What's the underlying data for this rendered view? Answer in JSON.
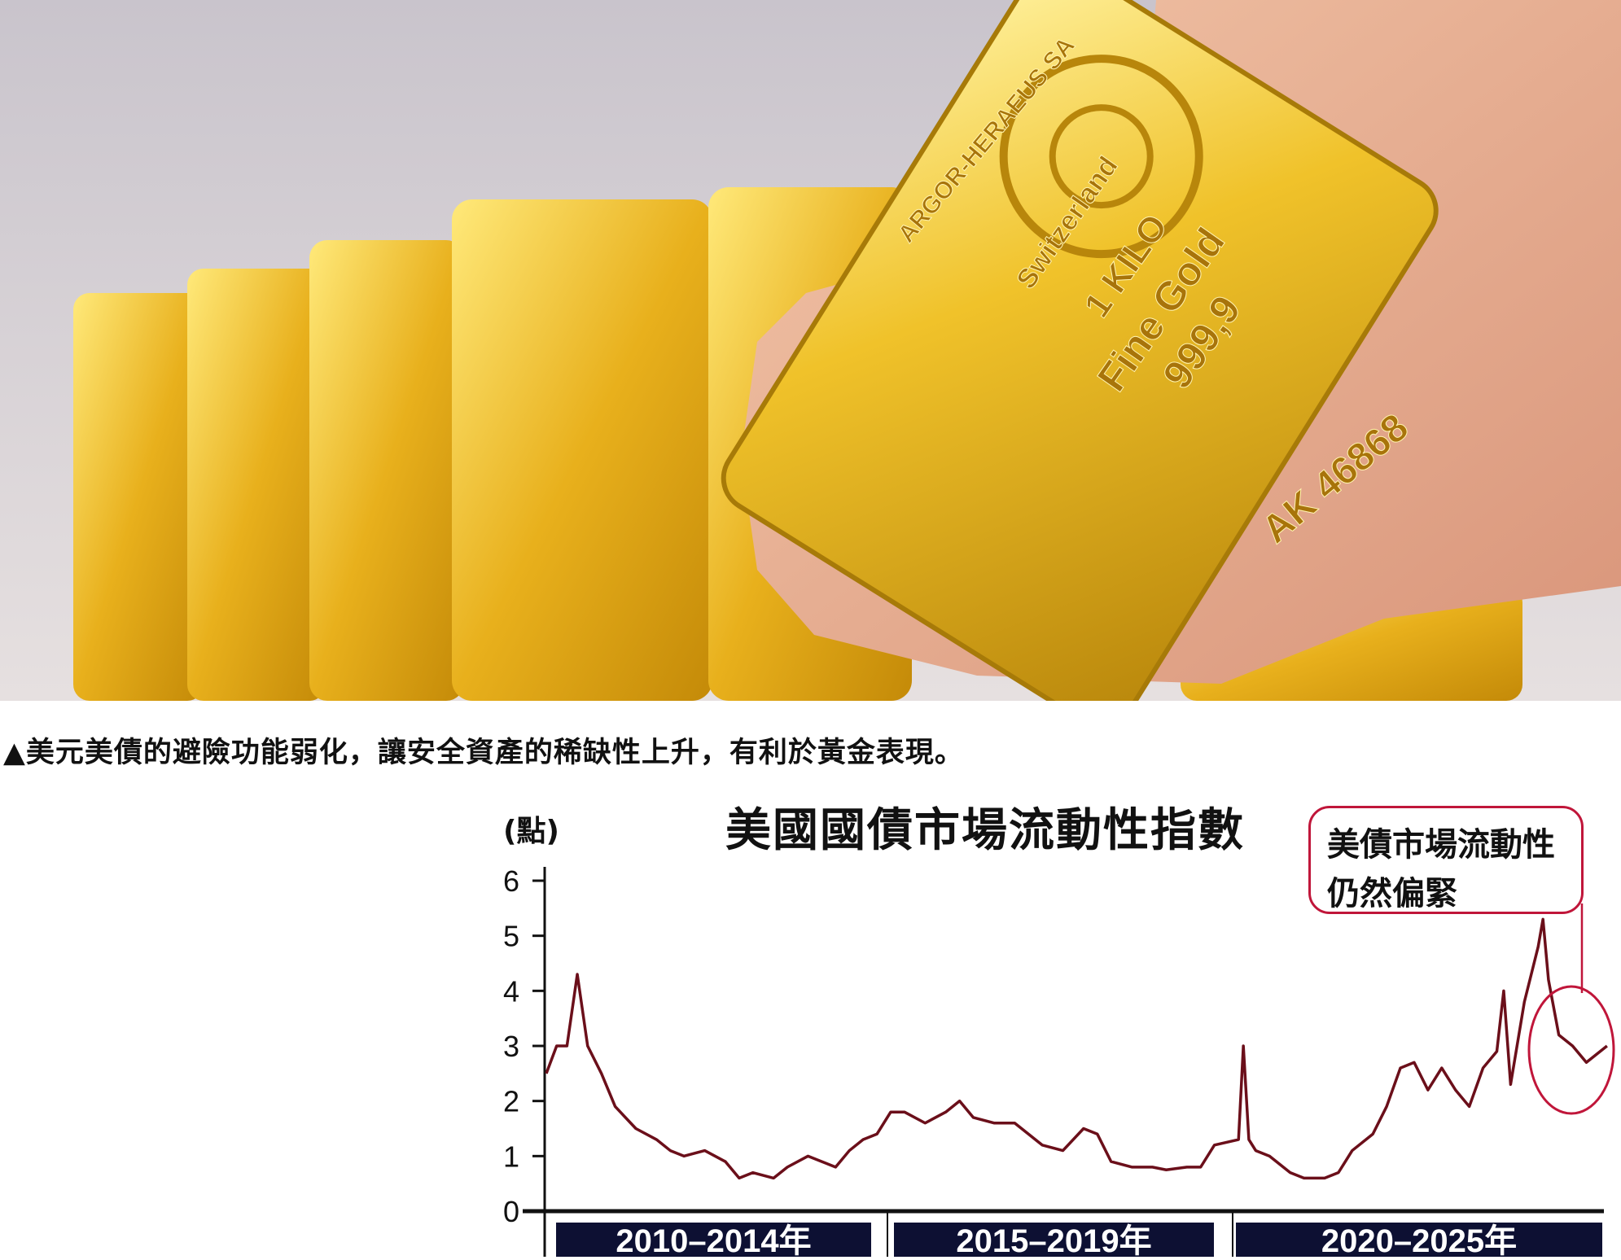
{
  "caption": "▲美元美債的避險功能弱化，讓安全資產的稀缺性上升，有利於黃金表現。",
  "photo": {
    "subject": "gold bars held in hand",
    "bar_inscriptions": [
      "ARGOR-HERAEUS SA",
      "Switzerland",
      "1 KILO",
      "Fine Gold",
      "999,9",
      "AK 46868"
    ]
  },
  "colors": {
    "line": "#6b0f1a",
    "annotation": "#c0163a",
    "period_box": "#0d1033"
  },
  "chart_data": {
    "type": "line",
    "title": "美國國債市場流動性指數",
    "ylabel": "(點)",
    "ylim": [
      0,
      6
    ],
    "yticks": [
      "0",
      "1",
      "2",
      "3",
      "4",
      "5",
      "6"
    ],
    "xlim": [
      2010,
      2025.5
    ],
    "period_labels": [
      "2010–2014年",
      "2015–2019年",
      "2020–2025年"
    ],
    "annotation": {
      "lines": [
        "美債市場流動性",
        "仍然偏緊"
      ],
      "circled_range": [
        2024.6,
        2025.5
      ]
    },
    "grid": false,
    "series": [
      {
        "x": [
          2010.0,
          2010.15,
          2010.3,
          2010.45,
          2010.6,
          2010.8,
          2011.0,
          2011.3,
          2011.6,
          2011.8,
          2012.0,
          2012.3,
          2012.6,
          2012.8,
          2013.0,
          2013.3,
          2013.5,
          2013.8,
          2014.0,
          2014.2,
          2014.4,
          2014.6,
          2014.8,
          2015.0,
          2015.2,
          2015.5,
          2015.8,
          2016.0,
          2016.2,
          2016.5,
          2016.8,
          2017.0,
          2017.2,
          2017.5,
          2017.8,
          2018.0,
          2018.2,
          2018.5,
          2018.8,
          2019.0,
          2019.3,
          2019.5,
          2019.7,
          2020.05,
          2020.12,
          2020.2,
          2020.3,
          2020.5,
          2020.8,
          2021.0,
          2021.3,
          2021.5,
          2021.7,
          2022.0,
          2022.2,
          2022.4,
          2022.6,
          2022.8,
          2023.0,
          2023.2,
          2023.4,
          2023.6,
          2023.8,
          2023.9,
          2024.0,
          2024.2,
          2024.4,
          2024.47,
          2024.55,
          2024.7,
          2024.9,
          2025.1,
          2025.3,
          2025.4
        ],
        "y": [
          2.5,
          3.0,
          3.0,
          4.3,
          3.0,
          2.5,
          1.9,
          1.5,
          1.3,
          1.1,
          1.0,
          1.1,
          0.9,
          0.6,
          0.7,
          0.6,
          0.8,
          1.0,
          0.9,
          0.8,
          1.1,
          1.3,
          1.4,
          1.8,
          1.8,
          1.6,
          1.8,
          2.0,
          1.7,
          1.6,
          1.6,
          1.4,
          1.2,
          1.1,
          1.5,
          1.4,
          0.9,
          0.8,
          0.8,
          0.75,
          0.8,
          0.8,
          1.2,
          1.3,
          3.0,
          1.3,
          1.1,
          1.0,
          0.7,
          0.6,
          0.6,
          0.7,
          1.1,
          1.4,
          1.9,
          2.6,
          2.7,
          2.2,
          2.6,
          2.2,
          1.9,
          2.6,
          2.9,
          4.0,
          2.3,
          3.8,
          4.8,
          5.3,
          4.2,
          3.2,
          3.0,
          2.7,
          2.9,
          3.0
        ]
      }
    ]
  }
}
